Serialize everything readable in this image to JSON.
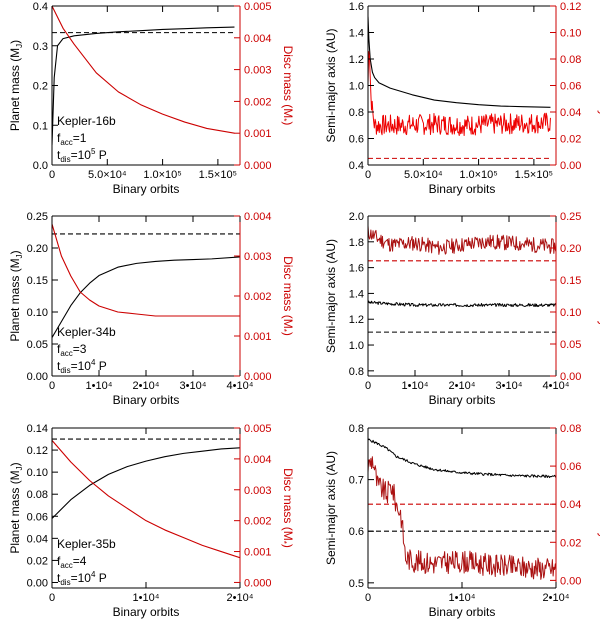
{
  "colors": {
    "black": "#000000",
    "red": "#cc0000",
    "dark_red": "#aa1111",
    "bright_red": "#ee0000"
  },
  "chart_data": [
    {
      "id": "p1",
      "type": "line",
      "xlabel": "Binary orbits",
      "ylabel": "Planet mass (M",
      "ylabel_sub": "J",
      "ylabel_close": ")",
      "y2label": "Disc mass (M",
      "y2label_sub": "*",
      "y2label_close": ")",
      "xlim": [
        0,
        170000
      ],
      "ylim": [
        0,
        0.4
      ],
      "y2lim": [
        0,
        0.005
      ],
      "xticks": [
        {
          "v": 0,
          "label": "0"
        },
        {
          "v": 50000,
          "label": "5.0×10⁴"
        },
        {
          "v": 100000,
          "label": "1.0×10⁵"
        },
        {
          "v": 150000,
          "label": "1.5×10⁵"
        }
      ],
      "yticks": [
        0,
        0.1,
        0.2,
        0.3,
        0.4
      ],
      "ytick_labels": [
        "0.0",
        "0.1",
        "0.2",
        "0.3",
        "0.4"
      ],
      "y2ticks": [
        0,
        0.001,
        0.002,
        0.003,
        0.004,
        0.005
      ],
      "y2tick_labels": [
        "0.000",
        "0.001",
        "0.002",
        "0.003",
        "0.004",
        "0.005"
      ],
      "annotation": {
        "name": "Kepler-16b",
        "facc": "=1",
        "tdis": "=10",
        "tdis_exp": "5",
        "tdis_unit": "P"
      },
      "series": [
        {
          "name": "planet mass",
          "axis": "left",
          "color": "#000000",
          "x": [
            0,
            2000,
            5000,
            10000,
            20000,
            40000,
            60000,
            80000,
            100000,
            120000,
            140000,
            165000
          ],
          "y": [
            0.05,
            0.22,
            0.3,
            0.318,
            0.325,
            0.331,
            0.335,
            0.338,
            0.341,
            0.343,
            0.345,
            0.347
          ]
        },
        {
          "name": "planet mass (final, dashed)",
          "axis": "left",
          "color": "#000000",
          "dash": true,
          "x": [
            0,
            165000
          ],
          "y": [
            0.333,
            0.333
          ]
        },
        {
          "name": "disc mass",
          "axis": "right",
          "color": "#cc0000",
          "x": [
            0,
            10000,
            20000,
            40000,
            60000,
            80000,
            100000,
            120000,
            140000,
            165000
          ],
          "y": [
            0.005,
            0.0043,
            0.0038,
            0.0029,
            0.0023,
            0.0019,
            0.0016,
            0.00135,
            0.00115,
            0.001
          ]
        }
      ]
    },
    {
      "id": "p2",
      "type": "line",
      "xlabel": "Binary orbits",
      "ylabel": "Semi-major axis (AU)",
      "y2label": "Eccentricity",
      "xlim": [
        0,
        170000
      ],
      "ylim": [
        0.4,
        1.6
      ],
      "y2lim": [
        0,
        0.12
      ],
      "xticks": [
        {
          "v": 0,
          "label": "0"
        },
        {
          "v": 50000,
          "label": "5.0×10⁴"
        },
        {
          "v": 100000,
          "label": "1.0×10⁵"
        },
        {
          "v": 150000,
          "label": "1.5×10⁵"
        }
      ],
      "yticks": [
        0.4,
        0.6,
        0.8,
        1.0,
        1.2,
        1.4,
        1.6
      ],
      "ytick_labels": [
        "0.4",
        "0.6",
        "0.8",
        "1.0",
        "1.2",
        "1.4",
        "1.6"
      ],
      "y2ticks": [
        0,
        0.02,
        0.04,
        0.06,
        0.08,
        0.1,
        0.12
      ],
      "y2tick_labels": [
        "0.00",
        "0.02",
        "0.04",
        "0.06",
        "0.08",
        "0.10",
        "0.12"
      ],
      "series": [
        {
          "name": "semi-major axis",
          "axis": "left",
          "color": "#000000",
          "x": [
            0,
            800,
            2000,
            4000,
            6000,
            10000,
            20000,
            40000,
            60000,
            80000,
            100000,
            120000,
            140000,
            165000
          ],
          "y": [
            1.52,
            1.35,
            1.2,
            1.1,
            1.06,
            1.02,
            0.98,
            0.93,
            0.89,
            0.87,
            0.855,
            0.845,
            0.84,
            0.835
          ]
        },
        {
          "name": "eccentricity",
          "axis": "right",
          "color": "#ee0000",
          "noise": 0.008,
          "noise_seed": 7,
          "x": [
            0,
            800,
            1500,
            2500,
            4000,
            6000,
            10000,
            30000,
            60000,
            90000,
            120000,
            165000
          ],
          "y": [
            0.06,
            0.1,
            0.08,
            0.055,
            0.04,
            0.03,
            0.03,
            0.03,
            0.031,
            0.03,
            0.031,
            0.032
          ]
        },
        {
          "name": "eccentricity (final, dashed)",
          "axis": "right",
          "color": "#cc0000",
          "dash": true,
          "x": [
            0,
            165000
          ],
          "y": [
            0.005,
            0.005
          ]
        }
      ]
    },
    {
      "id": "p3",
      "type": "line",
      "xlabel": "Binary orbits",
      "ylabel": "Planet mass (M",
      "ylabel_sub": "J",
      "ylabel_close": ")",
      "y2label": "Disc mass (M",
      "y2label_sub": "*",
      "y2label_close": ")",
      "xlim": [
        0,
        40000
      ],
      "ylim": [
        0,
        0.25
      ],
      "y2lim": [
        0,
        0.004
      ],
      "xticks": [
        {
          "v": 0,
          "label": "0"
        },
        {
          "v": 10000,
          "label": "1•10⁴"
        },
        {
          "v": 20000,
          "label": "2•10⁴"
        },
        {
          "v": 30000,
          "label": "3•10⁴"
        },
        {
          "v": 40000,
          "label": "4•10⁴"
        }
      ],
      "yticks": [
        0,
        0.05,
        0.1,
        0.15,
        0.2,
        0.25
      ],
      "ytick_labels": [
        "0.00",
        "0.05",
        "0.10",
        "0.15",
        "0.20",
        "0.25"
      ],
      "y2ticks": [
        0,
        0.001,
        0.002,
        0.003,
        0.004
      ],
      "y2tick_labels": [
        "0.000",
        "0.001",
        "0.002",
        "0.003",
        "0.004"
      ],
      "annotation": {
        "name": "Kepler-34b",
        "facc": "=3",
        "tdis": "=10",
        "tdis_exp": "4",
        "tdis_unit": "P"
      },
      "series": [
        {
          "name": "planet mass",
          "axis": "left",
          "color": "#000000",
          "x": [
            0,
            2000,
            4000,
            6000,
            8000,
            10000,
            14000,
            18000,
            22000,
            26000,
            30000,
            34000,
            40000
          ],
          "y": [
            0.06,
            0.085,
            0.11,
            0.13,
            0.145,
            0.157,
            0.17,
            0.176,
            0.179,
            0.181,
            0.182,
            0.183,
            0.186
          ]
        },
        {
          "name": "planet mass (final, dashed)",
          "axis": "left",
          "color": "#000000",
          "dash": true,
          "x": [
            0,
            40000
          ],
          "y": [
            0.222,
            0.222
          ]
        },
        {
          "name": "disc mass",
          "axis": "right",
          "color": "#cc0000",
          "x": [
            0,
            2000,
            4000,
            6000,
            8000,
            10000,
            14000,
            18000,
            22000,
            26000,
            30000,
            35000,
            40000
          ],
          "y": [
            0.0038,
            0.003,
            0.0025,
            0.0021,
            0.0019,
            0.00175,
            0.0016,
            0.00155,
            0.0015,
            0.0015,
            0.0015,
            0.0015,
            0.0015
          ]
        }
      ]
    },
    {
      "id": "p4",
      "type": "line",
      "xlabel": "Binary orbits",
      "ylabel": "Semi-major axis (AU)",
      "y2label": "Eccentricity",
      "xlim": [
        0,
        40000
      ],
      "ylim": [
        0.76,
        2.0
      ],
      "y2lim": [
        0,
        0.25
      ],
      "xticks": [
        {
          "v": 0,
          "label": "0"
        },
        {
          "v": 10000,
          "label": "1•10⁴"
        },
        {
          "v": 20000,
          "label": "2•10⁴"
        },
        {
          "v": 30000,
          "label": "3•10⁴"
        },
        {
          "v": 40000,
          "label": "4•10⁴"
        }
      ],
      "yticks": [
        0.8,
        1.0,
        1.2,
        1.4,
        1.6,
        1.8,
        2.0
      ],
      "ytick_labels": [
        "0.8",
        "1.0",
        "1.2",
        "1.4",
        "1.6",
        "1.8",
        "2.0"
      ],
      "y2ticks": [
        0,
        0.05,
        0.1,
        0.15,
        0.2,
        0.25
      ],
      "y2tick_labels": [
        "0.00",
        "0.05",
        "0.10",
        "0.15",
        "0.20",
        "0.25"
      ],
      "series": [
        {
          "name": "semi-major axis",
          "axis": "left",
          "color": "#000000",
          "noise": 0.012,
          "noise_seed": 3,
          "x": [
            0,
            10000,
            20000,
            30000,
            40000
          ],
          "y": [
            1.33,
            1.31,
            1.31,
            1.31,
            1.31
          ]
        },
        {
          "name": "semi-major axis (final, dashed)",
          "axis": "left",
          "color": "#000000",
          "dash": true,
          "x": [
            0,
            40000
          ],
          "y": [
            1.1,
            1.1
          ]
        },
        {
          "name": "eccentricity",
          "axis": "right",
          "color": "#aa1111",
          "noise": 0.012,
          "noise_seed": 11,
          "x": [
            0,
            2000,
            5000,
            10000,
            15000,
            20000,
            25000,
            30000,
            35000,
            40000
          ],
          "y": [
            0.225,
            0.215,
            0.205,
            0.208,
            0.2,
            0.205,
            0.21,
            0.208,
            0.205,
            0.202
          ]
        },
        {
          "name": "eccentricity (final, dashed)",
          "axis": "right",
          "color": "#cc0000",
          "dash": true,
          "x": [
            0,
            40000
          ],
          "y": [
            0.18,
            0.18
          ]
        }
      ]
    },
    {
      "id": "p5",
      "type": "line",
      "xlabel": "Binary orbits",
      "ylabel": "Planet mass (M",
      "ylabel_sub": "J",
      "ylabel_close": ")",
      "y2label": "Disc mass (M",
      "y2label_sub": "*",
      "y2label_close": ")",
      "xlim": [
        0,
        20000
      ],
      "ylim": [
        -0.005,
        0.14
      ],
      "y2lim": [
        -0.00018,
        0.005
      ],
      "xticks": [
        {
          "v": 0,
          "label": "0"
        },
        {
          "v": 10000,
          "label": "1•10⁴"
        },
        {
          "v": 20000,
          "label": "2•10⁴"
        }
      ],
      "yticks": [
        0,
        0.02,
        0.04,
        0.06,
        0.08,
        0.1,
        0.12,
        0.14
      ],
      "ytick_labels": [
        "0.00",
        "0.02",
        "0.04",
        "0.06",
        "0.08",
        "0.10",
        "0.12",
        "0.14"
      ],
      "y2ticks": [
        0,
        0.001,
        0.002,
        0.003,
        0.004,
        0.005
      ],
      "y2tick_labels": [
        "0.000",
        "0.001",
        "0.002",
        "0.003",
        "0.004",
        "0.005"
      ],
      "annotation": {
        "name": "Kepler-35b",
        "facc": "=4",
        "tdis": "=10",
        "tdis_exp": "4",
        "tdis_unit": "P"
      },
      "series": [
        {
          "name": "planet mass",
          "axis": "left",
          "color": "#000000",
          "x": [
            0,
            2000,
            4000,
            6000,
            8000,
            10000,
            12000,
            14000,
            16000,
            18000,
            20000
          ],
          "y": [
            0.058,
            0.075,
            0.088,
            0.098,
            0.105,
            0.11,
            0.114,
            0.117,
            0.119,
            0.121,
            0.122
          ]
        },
        {
          "name": "planet mass (final, dashed)",
          "axis": "left",
          "color": "#000000",
          "dash": true,
          "x": [
            0,
            20000
          ],
          "y": [
            0.13,
            0.13
          ]
        },
        {
          "name": "disc mass",
          "axis": "right",
          "color": "#cc0000",
          "x": [
            0,
            2000,
            4000,
            6000,
            8000,
            10000,
            12000,
            14000,
            16000,
            18000,
            20000
          ],
          "y": [
            0.0046,
            0.0039,
            0.0033,
            0.0028,
            0.0024,
            0.002,
            0.0017,
            0.00145,
            0.0012,
            0.001,
            0.0008
          ]
        }
      ]
    },
    {
      "id": "p6",
      "type": "line",
      "xlabel": "Binary orbits",
      "ylabel": "Semi-major axis (AU)",
      "y2label": "Eccentricity",
      "xlim": [
        0,
        20000
      ],
      "ylim": [
        0.49,
        0.8
      ],
      "y2lim": [
        -0.004,
        0.08
      ],
      "xticks": [
        {
          "v": 0,
          "label": "0"
        },
        {
          "v": 10000,
          "label": "1•10⁴"
        },
        {
          "v": 20000,
          "label": "2•10⁴"
        }
      ],
      "yticks": [
        0.5,
        0.6,
        0.7,
        0.8
      ],
      "ytick_labels": [
        "0.5",
        "0.6",
        "0.7",
        "0.8"
      ],
      "y2ticks": [
        0,
        0.02,
        0.04,
        0.06,
        0.08
      ],
      "y2tick_labels": [
        "0.00",
        "0.02",
        "0.04",
        "0.06",
        "0.08"
      ],
      "series": [
        {
          "name": "semi-major axis",
          "axis": "left",
          "color": "#000000",
          "noise": 0.0025,
          "noise_seed": 5,
          "x": [
            0,
            1000,
            2000,
            3000,
            5000,
            7000,
            9000,
            11000,
            13000,
            15000,
            17000,
            20000
          ],
          "y": [
            0.778,
            0.77,
            0.76,
            0.745,
            0.73,
            0.72,
            0.715,
            0.712,
            0.71,
            0.708,
            0.707,
            0.706
          ]
        },
        {
          "name": "semi-major axis (final, dashed)",
          "axis": "left",
          "color": "#000000",
          "dash": true,
          "x": [
            0,
            20000
          ],
          "y": [
            0.6,
            0.6
          ]
        },
        {
          "name": "eccentricity",
          "axis": "right",
          "color": "#aa1111",
          "noise": 0.006,
          "noise_seed": 9,
          "x": [
            0,
            500,
            1000,
            1500,
            2000,
            2500,
            3000,
            3500,
            4000,
            5000,
            7000,
            10000,
            13000,
            16000,
            20000
          ],
          "y": [
            0.06,
            0.064,
            0.05,
            0.048,
            0.045,
            0.05,
            0.04,
            0.035,
            0.012,
            0.01,
            0.009,
            0.01,
            0.008,
            0.007,
            0.006
          ]
        },
        {
          "name": "eccentricity (final, dashed)",
          "axis": "right",
          "color": "#cc0000",
          "dash": true,
          "x": [
            0,
            20000
          ],
          "y": [
            0.04,
            0.04
          ]
        }
      ]
    }
  ]
}
